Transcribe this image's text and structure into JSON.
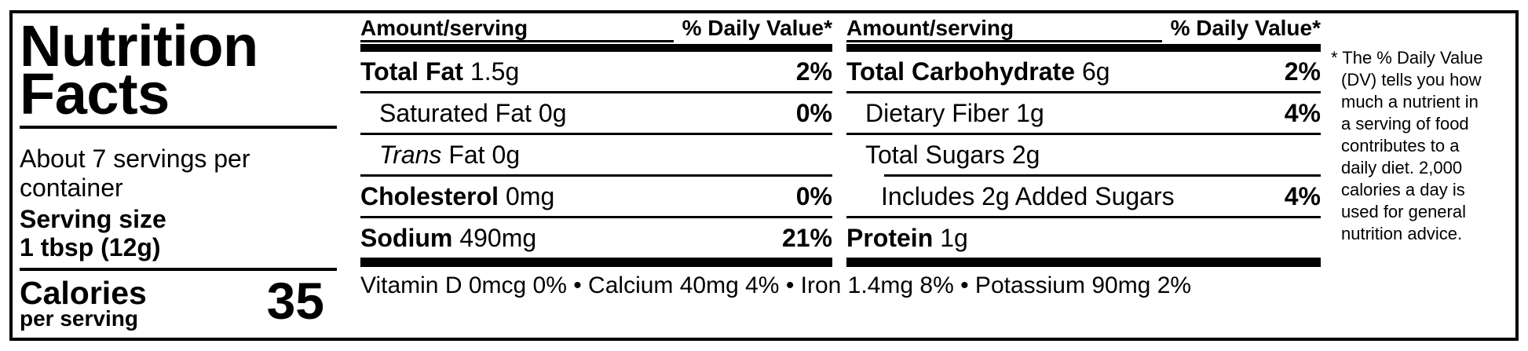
{
  "colors": {
    "ink": "#000000",
    "paper": "#ffffff"
  },
  "label": {
    "title_lines": [
      "Nutrition",
      "Facts"
    ],
    "servings_text": "About 7 servings per container",
    "serving_size_label": "Serving size",
    "serving_size_value": "1 tbsp (12g)",
    "calories_label": "Calories",
    "calories_sublabel": "per serving",
    "calories_value": "35"
  },
  "columns": [
    {
      "header": {
        "amount": "Amount/serving",
        "dv": "% Daily Value*"
      },
      "rows": [
        {
          "name": "Total Fat",
          "name_bold": true,
          "amount": "1.5g",
          "dv": "2%",
          "indent": 0,
          "divider_below": "thin"
        },
        {
          "name": "Saturated Fat",
          "name_bold": false,
          "amount": "0g",
          "dv": "0%",
          "indent": 1,
          "divider_below": "thin"
        },
        {
          "name_italic": "Trans",
          "name": " Fat",
          "name_bold": false,
          "amount": "0g",
          "dv": "",
          "indent": 1,
          "divider_below": "thin"
        },
        {
          "name": "Cholesterol",
          "name_bold": true,
          "amount": "0mg",
          "dv": "0%",
          "indent": 0,
          "divider_below": "thin"
        },
        {
          "name": "Sodium",
          "name_bold": true,
          "amount": "490mg",
          "dv": "21%",
          "indent": 0,
          "divider_below": "thick"
        }
      ]
    },
    {
      "header": {
        "amount": "Amount/serving",
        "dv": "% Daily Value*"
      },
      "rows": [
        {
          "name": "Total Carbohydrate",
          "name_bold": true,
          "amount": "6g",
          "dv": "2%",
          "indent": 0,
          "divider_below": "thin"
        },
        {
          "name": "Dietary Fiber",
          "name_bold": false,
          "amount": "1g",
          "dv": "4%",
          "indent": 1,
          "divider_below": "thin"
        },
        {
          "name": "Total Sugars",
          "name_bold": false,
          "amount": "2g",
          "dv": "",
          "indent": 1,
          "divider_below": "thin-indented"
        },
        {
          "name": "Includes 2g Added Sugars",
          "name_bold": false,
          "amount": "",
          "dv": "4%",
          "indent": 2,
          "divider_below": "thin"
        },
        {
          "name": "Protein",
          "name_bold": true,
          "amount": "1g",
          "dv": "",
          "indent": 0,
          "divider_below": "thick"
        }
      ]
    }
  ],
  "micronutrients": "Vitamin D 0mcg 0% • Calcium 40mg 4% • Iron 1.4mg 8% • Potassium 90mg 2%",
  "footnote": "* The % Daily Value (DV) tells you how much a nutrient in a serving of food contributes to a daily diet. 2,000 calories a day is used for general nutrition advice."
}
